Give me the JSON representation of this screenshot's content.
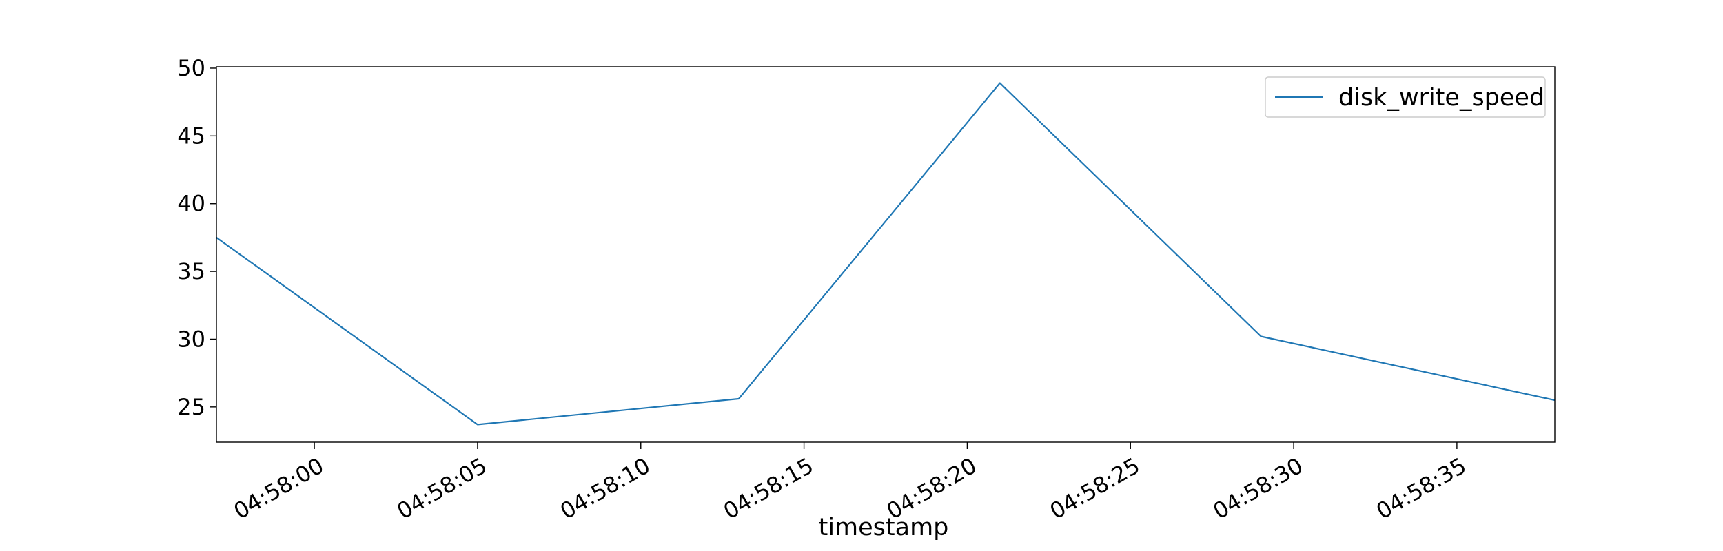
{
  "chart_data": {
    "type": "line",
    "xlabel": "timestamp",
    "ylabel": "",
    "x_ticks": [
      "04:58:00",
      "04:58:05",
      "04:58:10",
      "04:58:15",
      "04:58:20",
      "04:58:25",
      "04:58:30",
      "04:58:35"
    ],
    "y_ticks": [
      25,
      30,
      35,
      40,
      45,
      50
    ],
    "xlim": [
      "04:57:57",
      "04:58:38"
    ],
    "ylim": [
      22.4,
      50.1
    ],
    "legend_position": "top-right",
    "grid": false,
    "series": [
      {
        "name": "disk_write_speed",
        "color": "#1f77b4",
        "points": [
          {
            "x": "04:57:57",
            "y": 37.5
          },
          {
            "x": "04:58:05",
            "y": 23.7
          },
          {
            "x": "04:58:13",
            "y": 25.6
          },
          {
            "x": "04:58:21",
            "y": 48.9
          },
          {
            "x": "04:58:29",
            "y": 30.2
          },
          {
            "x": "04:58:38",
            "y": 25.5
          }
        ]
      }
    ]
  }
}
